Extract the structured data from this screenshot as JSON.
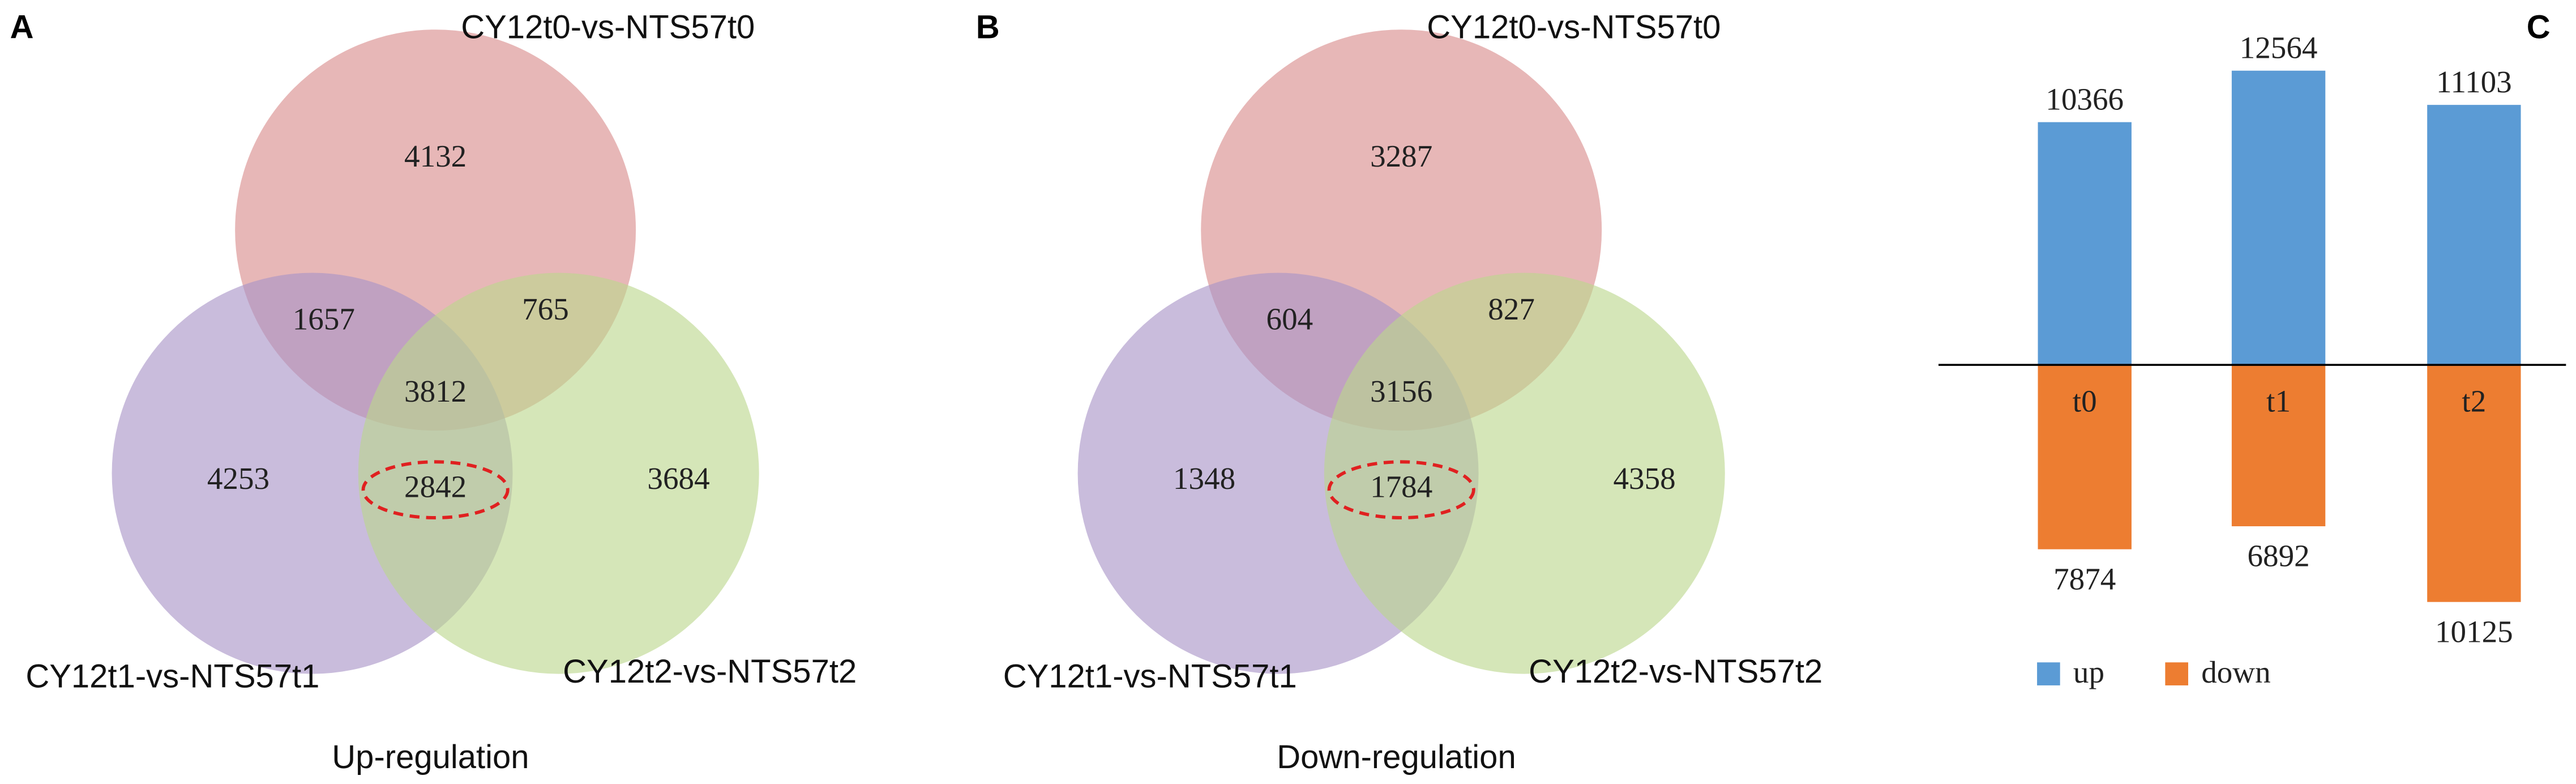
{
  "chart_data": [
    {
      "type": "venn",
      "panel": "A",
      "title": "Up-regulation",
      "sets": [
        {
          "name": "CY12t0-vs-NTS57t0",
          "color": "#d98a8a"
        },
        {
          "name": "CY12t1-vs-NTS57t1",
          "color": "#a893c6"
        },
        {
          "name": "CY12t2-vs-NTS57t2",
          "color": "#bcd68d"
        }
      ],
      "regions": {
        "top_only": 4132,
        "top_left": 1657,
        "top_right": 765,
        "all": 3812,
        "left_only": 4253,
        "left_right": 2842,
        "right_only": 3684
      }
    },
    {
      "type": "venn",
      "panel": "B",
      "title": "Down-regulation",
      "sets": [
        {
          "name": "CY12t0-vs-NTS57t0",
          "color": "#d98a8a"
        },
        {
          "name": "CY12t1-vs-NTS57t1",
          "color": "#a893c6"
        },
        {
          "name": "CY12t2-vs-NTS57t2",
          "color": "#bcd68d"
        }
      ],
      "regions": {
        "top_only": 3287,
        "top_left": 604,
        "top_right": 827,
        "all": 3156,
        "left_only": 1348,
        "left_right": 1784,
        "right_only": 4358
      }
    },
    {
      "type": "bar",
      "panel": "C",
      "categories": [
        "t0",
        "t1",
        "t2"
      ],
      "series": [
        {
          "name": "up",
          "color": "#5b9bd5",
          "values": [
            10366,
            12564,
            11103
          ]
        },
        {
          "name": "down",
          "color": "#ed7d31",
          "values": [
            7874,
            6892,
            10125
          ]
        }
      ]
    }
  ]
}
